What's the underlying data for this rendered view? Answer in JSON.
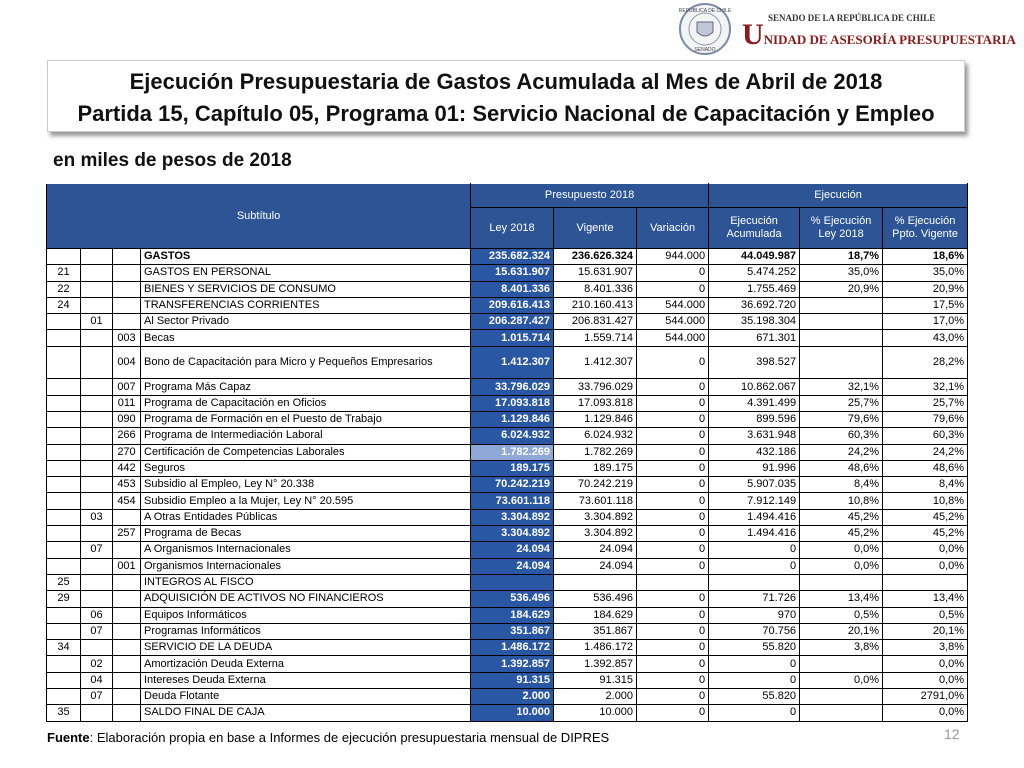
{
  "logo": {
    "seal_top": "REPÚBLICA DE CHILE",
    "seal_bottom": "SENADO",
    "line1": "SENADO DE LA REPÚBLICA DE CHILE",
    "line2": "UNIDAD DE ASESORÍA PRESUPUESTARIA"
  },
  "title": {
    "line1": "Ejecución Presupuestaria de Gastos Acumulada al Mes de Abril de 2018",
    "line2": "Partida 15, Capítulo 05, Programa 01: Servicio Nacional de Capacitación y Empleo"
  },
  "subtitle": "en miles de pesos de 2018",
  "table": {
    "header": {
      "subtitulo": "Subtítulo",
      "presupuesto": "Presupuesto 2018",
      "ejecucion": "Ejecución",
      "columns": [
        [
          "Ley 2018"
        ],
        [
          "Vigente"
        ],
        [
          "Variación"
        ],
        [
          "Ejecución",
          "Acumulada"
        ],
        [
          "% Ejecución",
          "Ley 2018"
        ],
        [
          "% Ejecución",
          "Ppto. Vigente"
        ]
      ]
    },
    "rows": [
      [
        null,
        null,
        null,
        "GASTOS",
        "235.682.324",
        "236.626.324",
        "944.000",
        "44.049.987",
        "18,7%",
        "18,6%"
      ],
      [
        "21",
        null,
        null,
        "GASTOS EN PERSONAL",
        "15.631.907",
        "15.631.907",
        "0",
        "5.474.252",
        "35,0%",
        "35,0%"
      ],
      [
        "22",
        null,
        null,
        "BIENES Y SERVICIOS DE CONSUMO",
        "8.401.336",
        "8.401.336",
        "0",
        "1.755.469",
        "20,9%",
        "20,9%"
      ],
      [
        "24",
        null,
        null,
        "TRANSFERENCIAS CORRIENTES",
        "209.616.413",
        "210.160.413",
        "544.000",
        "36.692.720",
        null,
        "17,5%"
      ],
      [
        null,
        "01",
        null,
        "Al Sector Privado",
        "206.287.427",
        "206.831.427",
        "544.000",
        "35.198.304",
        null,
        "17,0%"
      ],
      [
        null,
        null,
        "003",
        "Becas",
        "1.015.714",
        "1.559.714",
        "544.000",
        "671.301",
        null,
        "43,0%"
      ],
      [
        null,
        null,
        "004",
        "Bono de Capacitación para Micro y Pequeños Empresarios",
        "1.412.307",
        "1.412.307",
        "0",
        "398.527",
        null,
        "28,2%"
      ],
      [
        null,
        null,
        "007",
        "Programa Más Capaz",
        "33.796.029",
        "33.796.029",
        "0",
        "10.862.067",
        "32,1%",
        "32,1%"
      ],
      [
        null,
        null,
        "011",
        "Programa de Capacitación en Oficios",
        "17.093.818",
        "17.093.818",
        "0",
        "4.391.499",
        "25,7%",
        "25,7%"
      ],
      [
        null,
        null,
        "090",
        "Programa de Formación en el Puesto de Trabajo",
        "1.129.846",
        "1.129.846",
        "0",
        "899.596",
        "79,6%",
        "79,6%"
      ],
      [
        null,
        null,
        "266",
        "Programa de Intermediación Laboral",
        "6.024.932",
        "6.024.932",
        "0",
        "3.631.948",
        "60,3%",
        "60,3%"
      ],
      [
        null,
        null,
        "270",
        "Certificación de Competencias Laborales",
        "1.782.269",
        "1.782.269",
        "0",
        "432.186",
        "24,2%",
        "24,2%"
      ],
      [
        null,
        null,
        "442",
        "Seguros",
        "189.175",
        "189.175",
        "0",
        "91.996",
        "48,6%",
        "48,6%"
      ],
      [
        null,
        null,
        "453",
        "Subsidio al Empleo, Ley N° 20.338",
        "70.242.219",
        "70.242.219",
        "0",
        "5.907.035",
        "8,4%",
        "8,4%"
      ],
      [
        null,
        null,
        "454",
        "Subsidio Empleo a la Mujer, Ley N° 20.595",
        "73.601.118",
        "73.601.118",
        "0",
        "7.912.149",
        "10,8%",
        "10,8%"
      ],
      [
        null,
        "03",
        null,
        "A Otras Entidades Públicas",
        "3.304.892",
        "3.304.892",
        "0",
        "1.494.416",
        "45,2%",
        "45,2%"
      ],
      [
        null,
        null,
        "257",
        "Programa de Becas",
        "3.304.892",
        "3.304.892",
        "0",
        "1.494.416",
        "45,2%",
        "45,2%"
      ],
      [
        null,
        "07",
        null,
        "A Organismos Internacionales",
        "24.094",
        "24.094",
        "0",
        "0",
        "0,0%",
        "0,0%"
      ],
      [
        null,
        null,
        "001",
        "Organismos Internacionales",
        "24.094",
        "24.094",
        "0",
        "0",
        "0,0%",
        "0,0%"
      ],
      [
        "25",
        null,
        null,
        "INTEGROS AL FISCO",
        null,
        null,
        null,
        null,
        null,
        null
      ],
      [
        "29",
        null,
        null,
        "ADQUISICIÓN DE ACTIVOS NO FINANCIEROS",
        "536.496",
        "536.496",
        "0",
        "71.726",
        "13,4%",
        "13,4%"
      ],
      [
        null,
        "06",
        null,
        "Equipos Informáticos",
        "184.629",
        "184.629",
        "0",
        "970",
        "0,5%",
        "0,5%"
      ],
      [
        null,
        "07",
        null,
        "Programas Informáticos",
        "351.867",
        "351.867",
        "0",
        "70.756",
        "20,1%",
        "20,1%"
      ],
      [
        "34",
        null,
        null,
        "SERVICIO DE LA DEUDA",
        "1.486.172",
        "1.486.172",
        "0",
        "55.820",
        "3,8%",
        "3,8%"
      ],
      [
        null,
        "02",
        null,
        "Amortización Deuda Externa",
        "1.392.857",
        "1.392.857",
        "0",
        "0",
        null,
        "0,0%"
      ],
      [
        null,
        "04",
        null,
        "Intereses Deuda Externa",
        "91.315",
        "91.315",
        "0",
        "0",
        "0,0%",
        "0,0%"
      ],
      [
        null,
        "07",
        null,
        "Deuda Flotante",
        "2.000",
        "2.000",
        "0",
        "55.820",
        null,
        "2791,0%"
      ],
      [
        "35",
        null,
        null,
        "SALDO FINAL DE CAJA",
        "10.000",
        "10.000",
        "0",
        "0",
        null,
        "0,0%"
      ]
    ]
  },
  "footer": {
    "source_label": "Fuente",
    "source_text": ": Elaboración propia en base  a Informes de ejecución presupuestaria mensual de DIPRES",
    "page": "12"
  }
}
